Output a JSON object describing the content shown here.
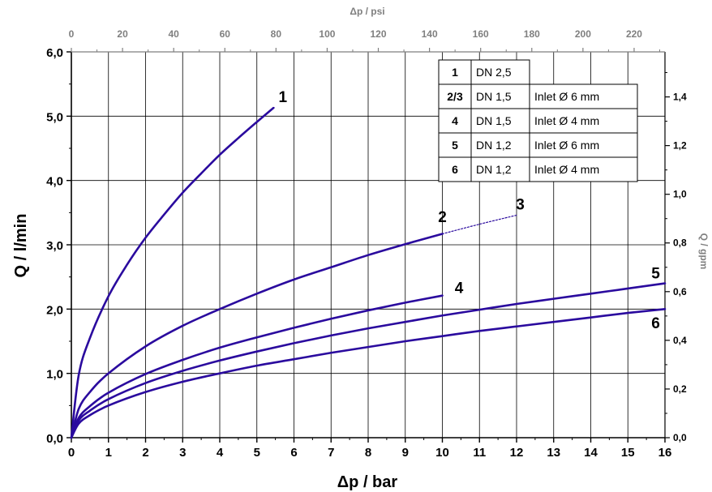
{
  "chart_data": {
    "type": "line",
    "xlabel": "Δp / bar",
    "ylabel": "Q / l/min",
    "x2label": "Δp / psi",
    "y2label": "Q / gpm",
    "xlim": [
      0,
      16
    ],
    "ylim": [
      0,
      6
    ],
    "x2lim": [
      0,
      232.06
    ],
    "y2lim": [
      0,
      1.585
    ],
    "x_ticks": [
      "0",
      "1",
      "2",
      "3",
      "4",
      "5",
      "6",
      "7",
      "8",
      "9",
      "10",
      "11",
      "12",
      "13",
      "14",
      "15",
      "16"
    ],
    "y_ticks": [
      "0,0",
      "1,0",
      "2,0",
      "3,0",
      "4,0",
      "5,0",
      "6,0"
    ],
    "x2_ticks": [
      "0",
      "20",
      "40",
      "60",
      "80",
      "100",
      "120",
      "140",
      "160",
      "180",
      "200",
      "220"
    ],
    "y2_ticks": [
      "0,0",
      "0,2",
      "0,4",
      "0,6",
      "0,8",
      "1,0",
      "1,2",
      "1,4"
    ],
    "grid": true,
    "series": [
      {
        "name": "1",
        "color": "#2a0a9e",
        "x": [
          0,
          0.2,
          0.5,
          1,
          1.5,
          2,
          2.5,
          3,
          3.5,
          4,
          4.5,
          5,
          5.45
        ],
        "y": [
          0,
          0.98,
          1.55,
          2.2,
          2.69,
          3.11,
          3.47,
          3.81,
          4.11,
          4.4,
          4.66,
          4.91,
          5.13
        ]
      },
      {
        "name": "2",
        "color": "#2a0a9e",
        "x": [
          0,
          0.2,
          0.5,
          1,
          2,
          3,
          4,
          5,
          6,
          7,
          8,
          9,
          10
        ],
        "y": [
          0,
          0.45,
          0.71,
          1.0,
          1.42,
          1.74,
          2.0,
          2.24,
          2.46,
          2.65,
          2.84,
          3.01,
          3.17
        ]
      },
      {
        "name": "3",
        "color": "#2a0a9e",
        "style": "dotted",
        "x": [
          10,
          11,
          12
        ],
        "y": [
          3.17,
          3.32,
          3.46
        ]
      },
      {
        "name": "4",
        "color": "#2a0a9e",
        "x": [
          0,
          0.2,
          0.5,
          1,
          2,
          3,
          4,
          5,
          6,
          7,
          8,
          9,
          10
        ],
        "y": [
          0,
          0.31,
          0.49,
          0.7,
          0.99,
          1.21,
          1.4,
          1.56,
          1.71,
          1.85,
          1.98,
          2.1,
          2.21
        ]
      },
      {
        "name": "5",
        "color": "#2a0a9e",
        "x": [
          0,
          0.2,
          0.5,
          1,
          2,
          3,
          4,
          5,
          6,
          7,
          8,
          9,
          10,
          11,
          12,
          13,
          14,
          15,
          16
        ],
        "y": [
          0,
          0.27,
          0.42,
          0.6,
          0.85,
          1.04,
          1.2,
          1.34,
          1.47,
          1.59,
          1.7,
          1.8,
          1.9,
          1.99,
          2.08,
          2.16,
          2.24,
          2.32,
          2.4
        ]
      },
      {
        "name": "6",
        "color": "#2a0a9e",
        "x": [
          0,
          0.2,
          0.5,
          1,
          2,
          3,
          4,
          5,
          6,
          7,
          8,
          9,
          10,
          11,
          12,
          13,
          14,
          15,
          16
        ],
        "y": [
          0,
          0.22,
          0.35,
          0.5,
          0.71,
          0.87,
          1.0,
          1.12,
          1.22,
          1.32,
          1.41,
          1.5,
          1.58,
          1.66,
          1.73,
          1.8,
          1.87,
          1.94,
          2.0
        ]
      }
    ],
    "curve_labels": [
      "1",
      "2",
      "3",
      "4",
      "5",
      "6"
    ],
    "legend_table": [
      {
        "id": "1",
        "dn": "DN 2,5",
        "inlet": ""
      },
      {
        "id": "2/3",
        "dn": "DN 1,5",
        "inlet": "Inlet Ø 6 mm"
      },
      {
        "id": "4",
        "dn": "DN 1,5",
        "inlet": "Inlet Ø 4 mm"
      },
      {
        "id": "5",
        "dn": "DN 1,2",
        "inlet": "Inlet Ø 6 mm"
      },
      {
        "id": "6",
        "dn": "DN 1,2",
        "inlet": "Inlet Ø 4 mm"
      }
    ],
    "legend_placement": "top-right"
  }
}
